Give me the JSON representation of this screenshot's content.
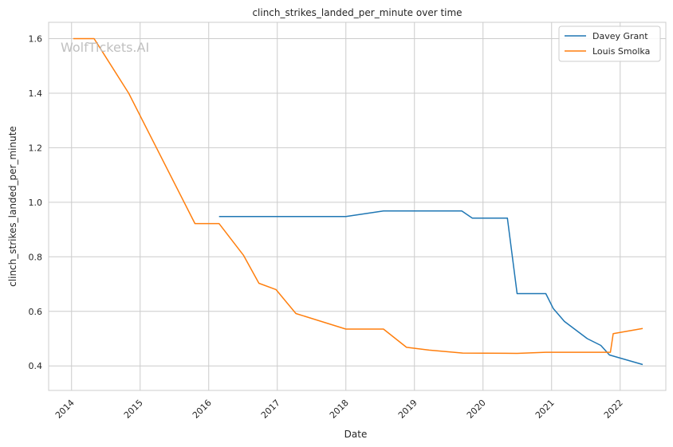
{
  "chart_data": {
    "type": "line",
    "title": "clinch_strikes_landed_per_minute over time",
    "xlabel": "Date",
    "ylabel": "clinch_strikes_landed_per_minute",
    "xlim": [
      "2013-09-01",
      "2022-09-01"
    ],
    "ylim": [
      0.31,
      1.66
    ],
    "x_ticks": [
      "2014",
      "2015",
      "2016",
      "2017",
      "2018",
      "2019",
      "2020",
      "2021",
      "2022"
    ],
    "y_ticks": [
      0.4,
      0.6,
      0.8,
      1.0,
      1.2,
      1.4,
      1.6
    ],
    "grid": true,
    "legend_position": "top-right",
    "watermark": "WolfTickets.AI",
    "series": [
      {
        "name": "Davey Grant",
        "color": "#1f77b4",
        "points": [
          [
            "2016-02-25",
            0.948
          ],
          [
            "2018-01-01",
            0.948
          ],
          [
            "2018-07-20",
            0.968
          ],
          [
            "2019-09-10",
            0.968
          ],
          [
            "2019-11-05",
            0.942
          ],
          [
            "2020-05-10",
            0.942
          ],
          [
            "2020-07-01",
            0.665
          ],
          [
            "2020-12-01",
            0.665
          ],
          [
            "2021-01-10",
            0.61
          ],
          [
            "2021-03-10",
            0.563
          ],
          [
            "2021-07-10",
            0.5
          ],
          [
            "2021-09-20",
            0.475
          ],
          [
            "2021-11-05",
            0.44
          ],
          [
            "2022-01-10",
            0.427
          ],
          [
            "2022-05-01",
            0.405
          ]
        ]
      },
      {
        "name": "Louis Smolka",
        "color": "#ff7f0e",
        "points": [
          [
            "2014-01-10",
            1.6
          ],
          [
            "2014-05-01",
            1.6
          ],
          [
            "2014-11-01",
            1.4
          ],
          [
            "2015-10-20",
            0.922
          ],
          [
            "2016-02-25",
            0.922
          ],
          [
            "2016-07-05",
            0.805
          ],
          [
            "2016-09-25",
            0.703
          ],
          [
            "2016-12-25",
            0.68
          ],
          [
            "2017-04-10",
            0.592
          ],
          [
            "2018-01-01",
            0.535
          ],
          [
            "2018-07-20",
            0.535
          ],
          [
            "2018-11-20",
            0.468
          ],
          [
            "2019-03-20",
            0.458
          ],
          [
            "2019-09-15",
            0.447
          ],
          [
            "2020-07-01",
            0.446
          ],
          [
            "2020-12-01",
            0.45
          ],
          [
            "2021-11-10",
            0.45
          ],
          [
            "2021-11-25",
            0.518
          ],
          [
            "2022-05-01",
            0.537
          ]
        ]
      }
    ]
  }
}
